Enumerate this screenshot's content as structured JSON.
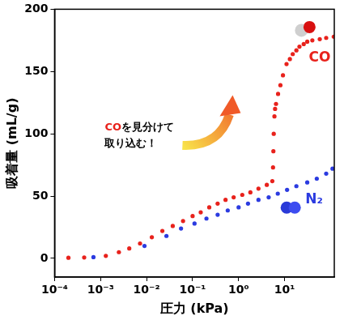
{
  "chart_data": {
    "type": "scatter",
    "x_label": "圧力 (kPa)",
    "y_label": "吸着量 (mL/g)",
    "log": "x",
    "grid": false,
    "xlim": [
      0.0001,
      120
    ],
    "xticks": [
      {
        "value": 0.0001,
        "label": "10⁻⁴"
      },
      {
        "value": 0.001,
        "label": "10⁻³"
      },
      {
        "value": 0.01,
        "label": "10⁻²"
      },
      {
        "value": 0.1,
        "label": "10⁻¹"
      },
      {
        "value": 1,
        "label": "10⁰"
      },
      {
        "value": 10,
        "label": "10¹"
      }
    ],
    "ylim": [
      -15,
      200
    ],
    "yticks": [
      0,
      50,
      100,
      150,
      200
    ],
    "series": [
      {
        "name": "CO",
        "color": "#e8221c",
        "marker": "circle",
        "x": [
          0.0002,
          0.00044,
          0.0013,
          0.0025,
          0.0042,
          0.0072,
          0.013,
          0.022,
          0.037,
          0.062,
          0.1,
          0.15,
          0.23,
          0.35,
          0.52,
          0.78,
          1.2,
          1.8,
          2.7,
          4.1,
          5.4,
          5.6,
          5.7,
          5.8,
          6.0,
          6.2,
          6.5,
          7.2,
          8.1,
          9.2,
          11,
          13,
          15,
          18,
          21,
          26,
          31,
          40,
          58,
          80,
          117
        ],
        "values": [
          0.5,
          0.7,
          2,
          5,
          8,
          12,
          17,
          22,
          26,
          30,
          34,
          37,
          41,
          44,
          47,
          49,
          51,
          53,
          56,
          59,
          62,
          73,
          86,
          100,
          114,
          120,
          124,
          132,
          139,
          147,
          156,
          160,
          164,
          167,
          170,
          172,
          174,
          175,
          176,
          177,
          178
        ]
      },
      {
        "name": "N₂",
        "color": "#2b3be0",
        "marker": "circle",
        "x": [
          0.0007,
          0.009,
          0.027,
          0.056,
          0.11,
          0.2,
          0.35,
          0.58,
          1.0,
          1.6,
          2.7,
          4.5,
          7.1,
          11.3,
          18,
          31,
          50,
          80,
          110
        ],
        "values": [
          1,
          10,
          18,
          24,
          28,
          32,
          35,
          38.5,
          41,
          44,
          47,
          49,
          52,
          55,
          58,
          61,
          64,
          68,
          72
        ]
      }
    ],
    "annotations": [
      {
        "text": [
          "COを見分けて",
          "取り込む！"
        ]
      }
    ]
  }
}
